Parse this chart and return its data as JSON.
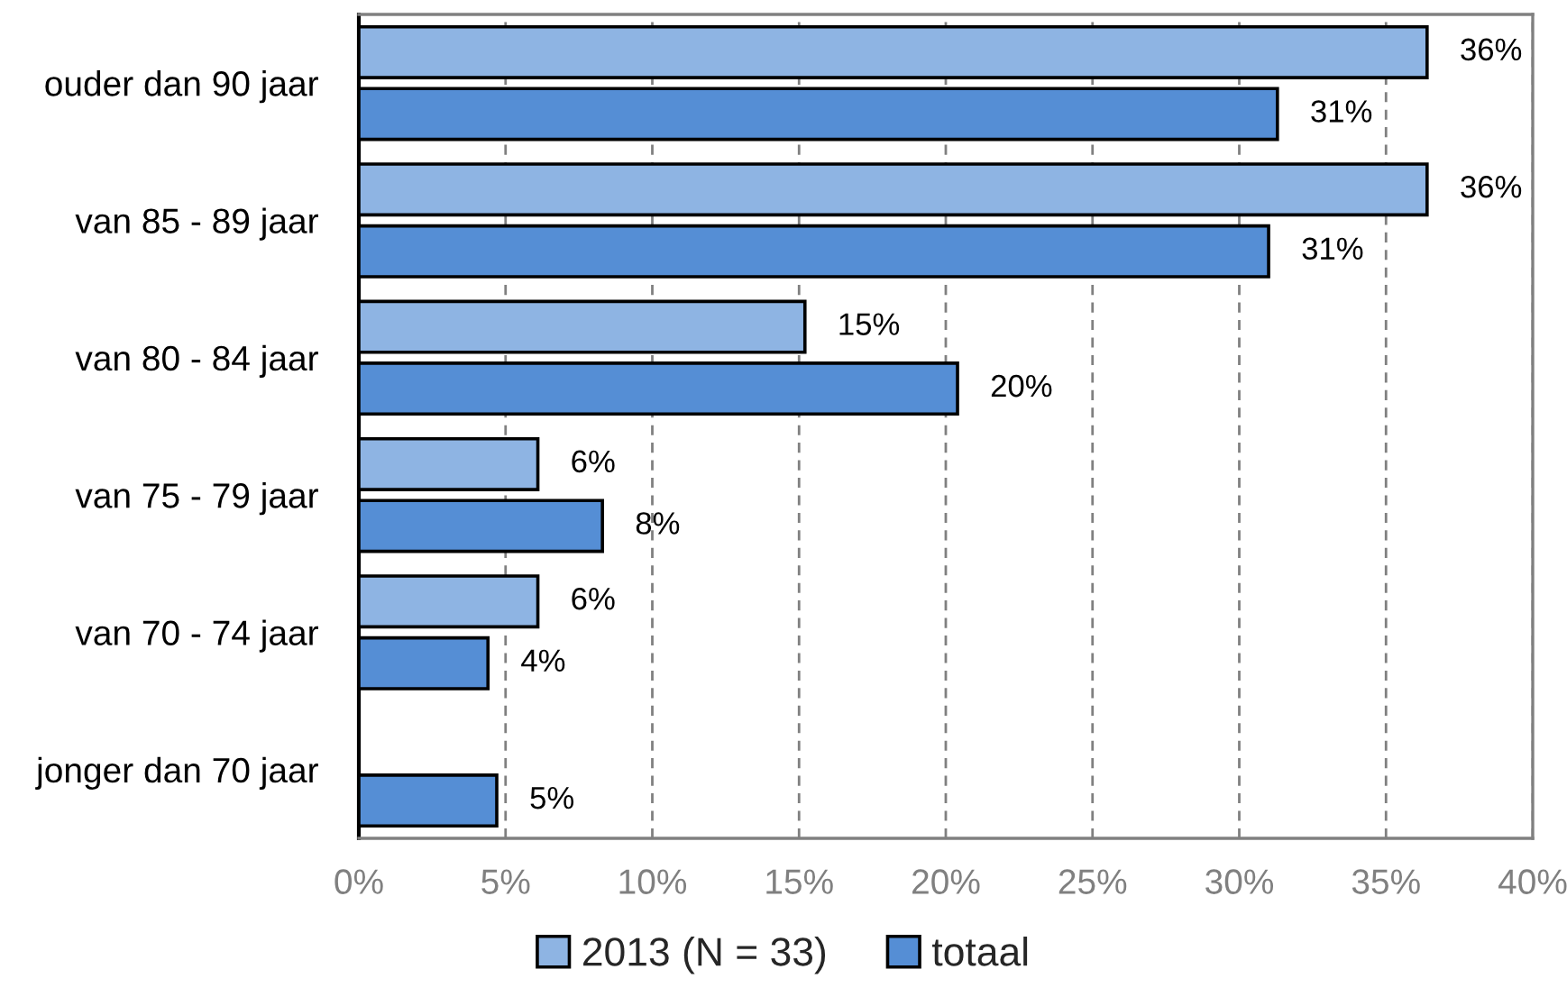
{
  "chart_data": {
    "type": "bar",
    "orientation": "horizontal",
    "categories": [
      "ouder dan 90 jaar",
      "van 85 - 89 jaar",
      "van 80 - 84 jaar",
      "van 75 - 79 jaar",
      "van 70 - 74 jaar",
      "jonger dan 70 jaar"
    ],
    "series": [
      {
        "name": "2013 (N = 33)",
        "color": "#8eb4e3",
        "values": [
          36.4,
          36.4,
          15.2,
          6.1,
          6.1,
          null
        ],
        "value_labels": [
          "36%",
          "36%",
          "15%",
          "6%",
          "6%",
          null
        ]
      },
      {
        "name": "totaal",
        "color": "#558ed5",
        "values": [
          31.3,
          31.0,
          20.4,
          8.3,
          4.4,
          4.7
        ],
        "value_labels": [
          "31%",
          "31%",
          "20%",
          "8%",
          "4%",
          "5%"
        ]
      }
    ],
    "xlim": [
      0,
      40
    ],
    "xticks": [
      {
        "value": 0,
        "label": "0%"
      },
      {
        "value": 5,
        "label": "5%"
      },
      {
        "value": 10,
        "label": "10%"
      },
      {
        "value": 15,
        "label": "15%"
      },
      {
        "value": 20,
        "label": "20%"
      },
      {
        "value": 25,
        "label": "25%"
      },
      {
        "value": 30,
        "label": "30%"
      },
      {
        "value": 35,
        "label": "35%"
      },
      {
        "value": 40,
        "label": "40%"
      }
    ],
    "grid": "x",
    "legend": "bottom"
  }
}
